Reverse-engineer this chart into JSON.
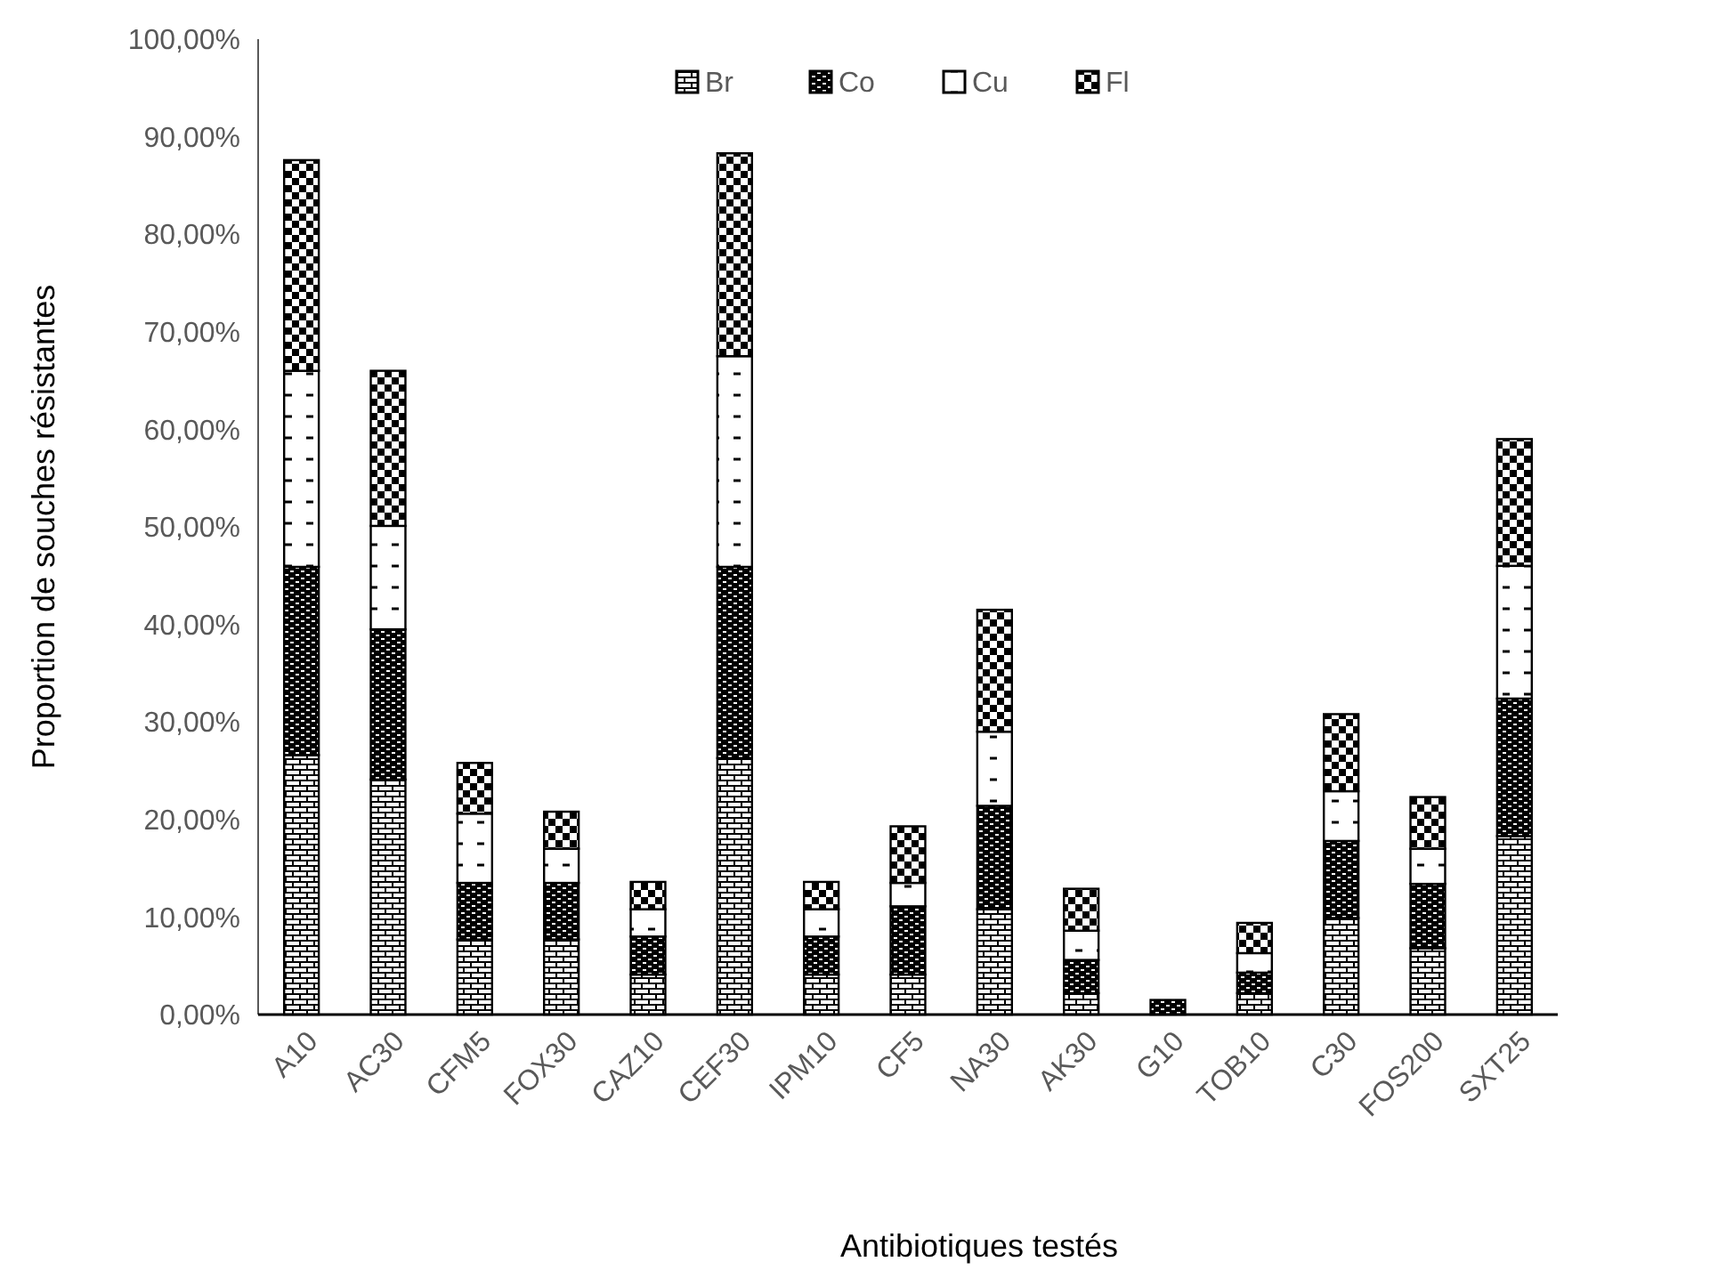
{
  "chart_data": {
    "type": "bar",
    "stacked": true,
    "xlabel": "Antibiotiques testés",
    "ylabel": "Proportion de souches résistantes",
    "categories": [
      "A10",
      "AC30",
      "CFM5",
      "FOX30",
      "CAZ10",
      "CEF30",
      "IPM10",
      "CF5",
      "NA30",
      "AK30",
      "G10",
      "TOB10",
      "C30",
      "FOS200",
      "SXT25"
    ],
    "series": [
      {
        "name": "Br",
        "color": "#000000",
        "values": [
          26.6,
          24.1,
          7.7,
          7.7,
          4.1,
          26.3,
          4.1,
          4.1,
          10.8,
          2.2,
          0,
          2.2,
          9.9,
          6.8,
          18.3
        ]
      },
      {
        "name": "Co",
        "color": "#000000",
        "values": [
          19.3,
          15.4,
          5.8,
          5.8,
          3.9,
          19.6,
          3.9,
          7.0,
          10.6,
          3.4,
          1.5,
          2.1,
          7.9,
          6.6,
          14.1
        ]
      },
      {
        "name": "Cu",
        "color": "#000000",
        "values": [
          20.1,
          10.6,
          7.1,
          3.5,
          2.8,
          21.6,
          2.8,
          2.4,
          7.6,
          3.0,
          0,
          2.0,
          5.1,
          3.6,
          13.6
        ]
      },
      {
        "name": "Fl",
        "color": "#000000",
        "values": [
          21.6,
          15.9,
          5.2,
          3.8,
          2.8,
          20.8,
          2.8,
          5.8,
          12.5,
          4.3,
          0,
          3.1,
          7.9,
          5.3,
          13.0
        ]
      }
    ],
    "ylim": [
      0,
      100
    ],
    "yticks": [
      {
        "value": 0,
        "label": "0,00%"
      },
      {
        "value": 10,
        "label": "10,00%"
      },
      {
        "value": 20,
        "label": "20,00%"
      },
      {
        "value": 30,
        "label": "30,00%"
      },
      {
        "value": 40,
        "label": "40,00%"
      },
      {
        "value": 50,
        "label": "50,00%"
      },
      {
        "value": 60,
        "label": "60,00%"
      },
      {
        "value": 70,
        "label": "70,00%"
      },
      {
        "value": 80,
        "label": "80,00%"
      },
      {
        "value": 90,
        "label": "90,00%"
      },
      {
        "value": 100,
        "label": "100,00%"
      }
    ],
    "grid": false,
    "legend": "top"
  }
}
